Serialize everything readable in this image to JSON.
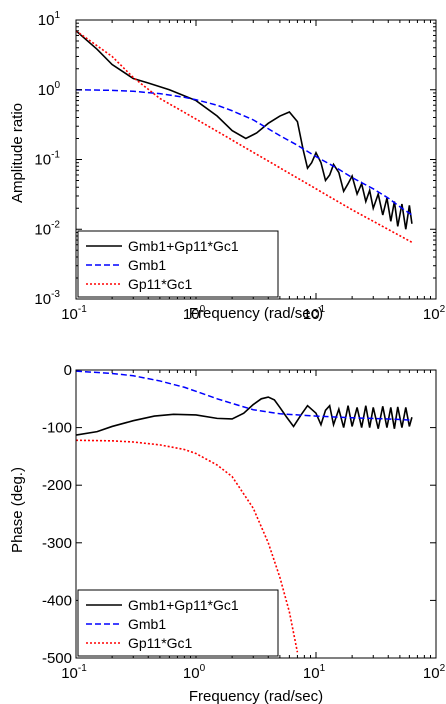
{
  "chart_data": [
    {
      "type": "line",
      "xlabel": "Frequency (rad/sec)",
      "ylabel": "Amplitude ratio",
      "xscale": "log",
      "yscale": "log",
      "xlim": [
        0.1,
        100
      ],
      "ylim": [
        0.001,
        10
      ],
      "x_ticks": [
        {
          "base": "10",
          "exp": "-1"
        },
        {
          "base": "10",
          "exp": "0"
        },
        {
          "base": "10",
          "exp": "1"
        },
        {
          "base": "10",
          "exp": "2"
        }
      ],
      "y_ticks": [
        {
          "base": "10",
          "exp": "-3"
        },
        {
          "base": "10",
          "exp": "-2"
        },
        {
          "base": "10",
          "exp": "-1"
        },
        {
          "base": "10",
          "exp": "0"
        },
        {
          "base": "10",
          "exp": "1"
        }
      ],
      "grid": false,
      "legend_position": "bottom-left",
      "series": [
        {
          "name": "Gmb1+Gp11*Gc1",
          "color": "#000000",
          "style": "solid",
          "x": [
            0.1,
            0.15,
            0.2,
            0.3,
            0.4,
            0.6,
            1,
            1.5,
            2,
            2.6,
            3.2,
            4,
            5,
            6,
            7,
            7.8,
            8.5,
            9.2,
            10,
            11,
            12,
            13,
            14,
            15.5,
            17,
            18.5,
            20,
            22,
            24,
            26,
            28,
            30,
            33,
            36,
            39,
            42,
            45,
            48,
            52,
            56,
            60,
            63
          ],
          "y": [
            7,
            3.8,
            2.3,
            1.45,
            1.25,
            1.0,
            0.7,
            0.42,
            0.26,
            0.2,
            0.24,
            0.33,
            0.42,
            0.48,
            0.35,
            0.14,
            0.075,
            0.09,
            0.125,
            0.09,
            0.05,
            0.06,
            0.085,
            0.065,
            0.035,
            0.045,
            0.058,
            0.032,
            0.045,
            0.025,
            0.036,
            0.02,
            0.032,
            0.016,
            0.028,
            0.013,
            0.025,
            0.011,
            0.023,
            0.01,
            0.022,
            0.012
          ]
        },
        {
          "name": "Gmb1",
          "color": "#0000ff",
          "style": "dashed",
          "x": [
            0.1,
            0.2,
            0.3,
            0.5,
            0.8,
            1,
            1.5,
            2,
            3,
            5,
            7,
            10,
            15,
            20,
            30,
            40,
            50,
            63
          ],
          "y": [
            1.0,
            0.98,
            0.95,
            0.88,
            0.78,
            0.72,
            0.6,
            0.5,
            0.37,
            0.22,
            0.16,
            0.11,
            0.075,
            0.055,
            0.038,
            0.028,
            0.021,
            0.016
          ]
        },
        {
          "name": "Gp11*Gc1",
          "color": "#ff0000",
          "style": "dotted",
          "x": [
            0.1,
            0.2,
            0.3,
            0.5,
            1,
            2,
            5,
            10,
            20,
            63
          ],
          "y": [
            7,
            3.0,
            1.5,
            0.75,
            0.38,
            0.19,
            0.076,
            0.038,
            0.019,
            0.0065
          ]
        }
      ]
    },
    {
      "type": "line",
      "xlabel": "Frequency (rad/sec)",
      "ylabel": "Phase (deg.)",
      "xscale": "log",
      "yscale": "linear",
      "xlim": [
        0.1,
        100
      ],
      "ylim": [
        -500,
        0
      ],
      "x_ticks": [
        {
          "base": "10",
          "exp": "-1"
        },
        {
          "base": "10",
          "exp": "0"
        },
        {
          "base": "10",
          "exp": "1"
        },
        {
          "base": "10",
          "exp": "2"
        }
      ],
      "y_ticks": [
        "0",
        "-100",
        "-200",
        "-300",
        "-400",
        "-500"
      ],
      "y_tick_values": [
        0,
        -100,
        -200,
        -300,
        -400,
        -500
      ],
      "grid": false,
      "legend_position": "bottom-left",
      "series": [
        {
          "name": "Gmb1+Gp11*Gc1",
          "color": "#000000",
          "style": "solid",
          "x": [
            0.1,
            0.15,
            0.2,
            0.3,
            0.45,
            0.65,
            1,
            1.5,
            2,
            2.5,
            3,
            3.5,
            4,
            4.5,
            5,
            5.7,
            6.5,
            7.5,
            8.5,
            10,
            11,
            12,
            13,
            14,
            15.5,
            17,
            18.5,
            20,
            22,
            24,
            26,
            28,
            30,
            33,
            36,
            39,
            42,
            45,
            48,
            52,
            56,
            60,
            63
          ],
          "y": [
            -113,
            -107,
            -98,
            -88,
            -80,
            -77,
            -78,
            -84,
            -85,
            -75,
            -60,
            -50,
            -47,
            -52,
            -65,
            -82,
            -98,
            -78,
            -62,
            -75,
            -95,
            -70,
            -62,
            -95,
            -68,
            -100,
            -62,
            -98,
            -65,
            -100,
            -62,
            -100,
            -65,
            -102,
            -63,
            -100,
            -65,
            -102,
            -64,
            -100,
            -65,
            -98,
            -82
          ]
        },
        {
          "name": "Gmb1",
          "color": "#0000ff",
          "style": "dashed",
          "x": [
            0.1,
            0.2,
            0.3,
            0.5,
            0.8,
            1,
            1.5,
            2,
            3,
            5,
            7,
            10,
            20,
            40,
            63
          ],
          "y": [
            -2,
            -6,
            -10,
            -19,
            -30,
            -37,
            -50,
            -58,
            -69,
            -76,
            -78,
            -80,
            -83,
            -85,
            -87
          ]
        },
        {
          "name": "Gp11*Gc1",
          "color": "#ff0000",
          "style": "dotted",
          "x": [
            0.1,
            0.2,
            0.3,
            0.5,
            0.8,
            1,
            1.5,
            2,
            3,
            4,
            5,
            6,
            7
          ],
          "y": [
            -122,
            -123,
            -125,
            -130,
            -138,
            -145,
            -165,
            -185,
            -240,
            -300,
            -360,
            -420,
            -490
          ]
        }
      ]
    }
  ]
}
